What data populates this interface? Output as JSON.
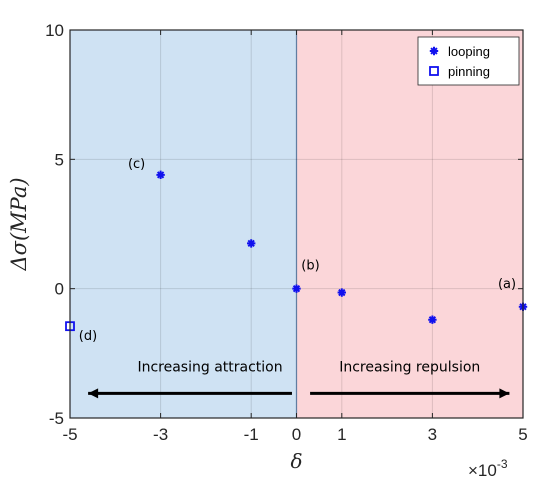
{
  "chart_data": {
    "type": "scatter",
    "xlabel": "δ",
    "ylabel": "Δσ(MPa)",
    "x_exponent_label": "×10",
    "x_exponent_power": "-3",
    "xlim": [
      -5,
      5
    ],
    "ylim": [
      -5,
      10
    ],
    "xticks": [
      -5,
      -3,
      -1,
      0,
      1,
      3,
      5
    ],
    "yticks": [
      -5,
      0,
      5,
      10
    ],
    "grid": true,
    "legend_placement": "top-right",
    "regions": [
      {
        "x_from": -5,
        "x_to": 0,
        "color": "#cfe2f3",
        "label": "Increasing attraction",
        "arrow": "left"
      },
      {
        "x_from": 0,
        "x_to": 5,
        "color": "#fbd6d9",
        "label": "Increasing repulsion",
        "arrow": "right"
      }
    ],
    "series": [
      {
        "name": "looping",
        "marker": "asterisk",
        "color": "#1111ee",
        "points": [
          {
            "x": -3,
            "y": 4.4,
            "label": "(c)"
          },
          {
            "x": -1,
            "y": 1.75,
            "label": ""
          },
          {
            "x": 0,
            "y": 0.0,
            "label": "(b)"
          },
          {
            "x": 1,
            "y": -0.15,
            "label": ""
          },
          {
            "x": 3,
            "y": -1.2,
            "label": ""
          },
          {
            "x": 5,
            "y": -0.7,
            "label": "(a)"
          }
        ]
      },
      {
        "name": "pinning",
        "marker": "square",
        "color": "#1111ee",
        "points": [
          {
            "x": -5,
            "y": -1.45,
            "label": "(d)"
          }
        ]
      }
    ]
  }
}
